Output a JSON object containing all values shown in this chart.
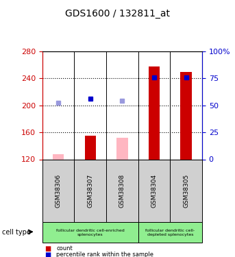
{
  "title": "GDS1600 / 132811_at",
  "samples": [
    "GSM38306",
    "GSM38307",
    "GSM38308",
    "GSM38304",
    "GSM38305"
  ],
  "cell_types": [
    {
      "label": "follicular dendritic cell-enriched\nsplenocytes",
      "span": [
        0,
        3
      ],
      "color": "#90EE90"
    },
    {
      "label": "follicular dendritic cell-\ndepleted splenocytes",
      "span": [
        3,
        5
      ],
      "color": "#90EE90"
    }
  ],
  "bar_values": [
    null,
    155,
    null,
    258,
    250
  ],
  "bar_absent_values": [
    128,
    null,
    152,
    null,
    null
  ],
  "rank_values": [
    null,
    210,
    null,
    241,
    241
  ],
  "rank_absent_values": [
    204,
    null,
    207,
    null,
    null
  ],
  "ylim_left": [
    120,
    280
  ],
  "ylim_right": [
    0,
    100
  ],
  "left_yticks": [
    120,
    160,
    200,
    240,
    280
  ],
  "right_yticks": [
    0,
    25,
    50,
    75,
    100
  ],
  "bar_color": "#CC0000",
  "bar_absent_color": "#FFB6C1",
  "rank_color": "#0000CC",
  "rank_absent_color": "#9999DD",
  "bg_color": "#E8E8E8",
  "dotted_line_values": [
    160,
    200,
    240
  ],
  "xlabel_color": "black",
  "left_axis_color": "#CC0000",
  "right_axis_color": "#0000CC"
}
